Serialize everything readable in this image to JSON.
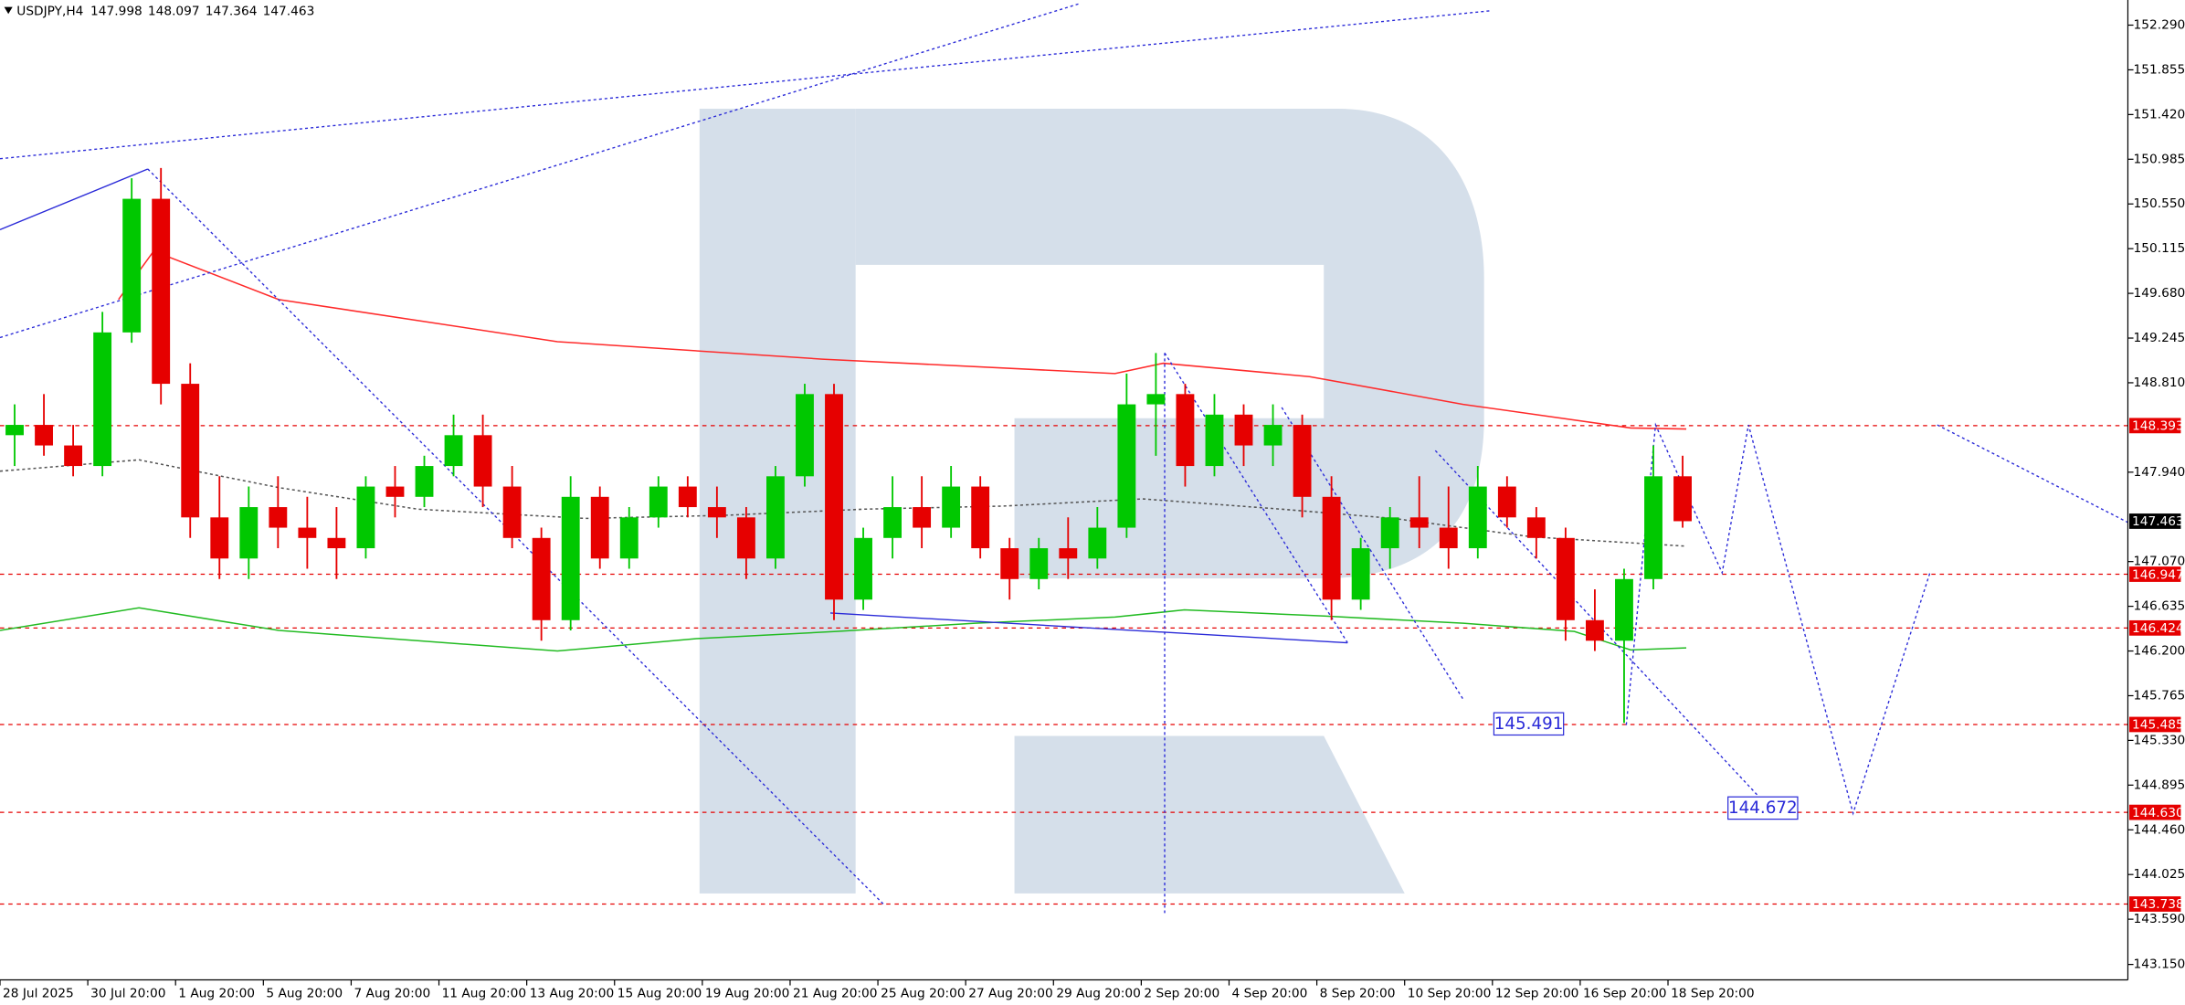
{
  "chart_data": {
    "type": "candlestick",
    "title": "USDJPY,H4",
    "header": {
      "open": 147.998,
      "high": 148.097,
      "low": 147.364,
      "close": 147.463
    },
    "x": [
      2,
      6,
      10,
      14,
      18,
      22,
      26,
      30,
      34,
      38,
      42,
      46,
      50,
      54,
      58,
      62,
      66,
      70,
      74,
      78,
      82,
      86,
      90,
      94,
      98,
      102,
      106,
      110,
      114,
      118,
      122,
      126,
      130,
      134,
      138,
      142,
      146,
      150,
      154,
      158,
      162,
      166,
      170,
      174,
      178,
      182,
      186,
      190,
      194,
      198,
      202,
      206,
      210,
      214,
      218,
      222,
      226,
      230
    ],
    "open": [
      148.3,
      148.4,
      148.2,
      148.0,
      149.3,
      150.6,
      148.8,
      147.5,
      147.1,
      147.6,
      147.4,
      147.3,
      147.2,
      147.8,
      147.7,
      148.0,
      148.3,
      147.8,
      147.3,
      146.5,
      147.7,
      147.1,
      147.5,
      147.8,
      147.6,
      147.5,
      147.1,
      147.9,
      148.7,
      146.7,
      147.3,
      147.6,
      147.4,
      147.8,
      147.2,
      146.9,
      147.2,
      147.1,
      147.4,
      148.6,
      148.7,
      148.0,
      148.5,
      148.2,
      148.4,
      147.7,
      146.7,
      147.2,
      147.5,
      147.4,
      147.2,
      147.8,
      147.5,
      147.3,
      146.5,
      146.3,
      146.9,
      147.9
    ],
    "high": [
      148.6,
      148.7,
      148.4,
      149.5,
      150.8,
      150.9,
      149.0,
      147.9,
      147.8,
      147.9,
      147.7,
      147.6,
      147.9,
      148.0,
      148.1,
      148.5,
      148.5,
      148.0,
      147.4,
      147.9,
      147.8,
      147.6,
      147.9,
      147.9,
      147.8,
      147.6,
      148.0,
      148.8,
      148.8,
      147.4,
      147.9,
      147.9,
      148.0,
      147.9,
      147.3,
      147.3,
      147.5,
      147.6,
      148.9,
      149.1,
      148.8,
      148.7,
      148.6,
      148.6,
      148.5,
      147.9,
      147.3,
      147.6,
      147.9,
      147.8,
      148.0,
      147.9,
      147.6,
      147.4,
      146.8,
      147.0,
      148.2,
      148.1
    ],
    "low": [
      148.0,
      148.1,
      147.9,
      147.9,
      149.2,
      148.6,
      147.3,
      146.9,
      146.9,
      147.2,
      147.0,
      146.9,
      147.1,
      147.5,
      147.6,
      147.9,
      147.6,
      147.2,
      146.3,
      146.4,
      147.0,
      147.0,
      147.4,
      147.5,
      147.3,
      146.9,
      147.0,
      147.8,
      146.5,
      146.6,
      147.1,
      147.2,
      147.3,
      147.1,
      146.7,
      146.8,
      146.9,
      147.0,
      147.3,
      148.1,
      147.8,
      147.9,
      148.0,
      148.0,
      147.5,
      146.5,
      146.6,
      147.0,
      147.2,
      147.0,
      147.1,
      147.4,
      147.1,
      146.3,
      146.2,
      145.5,
      146.8,
      147.4
    ],
    "close": [
      148.4,
      148.2,
      148.0,
      149.3,
      150.6,
      148.8,
      147.5,
      147.1,
      147.6,
      147.4,
      147.3,
      147.2,
      147.8,
      147.7,
      148.0,
      148.3,
      147.8,
      147.3,
      146.5,
      147.7,
      147.1,
      147.5,
      147.8,
      147.6,
      147.5,
      147.1,
      147.9,
      148.7,
      146.7,
      147.3,
      147.6,
      147.4,
      147.8,
      147.2,
      146.9,
      147.2,
      147.1,
      147.4,
      148.6,
      148.7,
      148.0,
      148.5,
      148.2,
      148.4,
      147.7,
      146.7,
      147.2,
      147.5,
      147.4,
      147.2,
      147.8,
      147.5,
      147.3,
      146.5,
      146.3,
      146.9,
      147.9,
      147.463
    ],
    "up_color": "#00c800",
    "down_color": "#e60000",
    "xlim": [
      0,
      290.86
    ],
    "xticks": [
      {
        "value": 0,
        "label": "28 Jul 2025"
      },
      {
        "value": 12,
        "label": "30 Jul 20:00"
      },
      {
        "value": 24,
        "label": "1 Aug 20:00"
      },
      {
        "value": 36,
        "label": "5 Aug 20:00"
      },
      {
        "value": 48,
        "label": "7 Aug 20:00"
      },
      {
        "value": 60,
        "label": "11 Aug 20:00"
      },
      {
        "value": 72,
        "label": "13 Aug 20:00"
      },
      {
        "value": 84,
        "label": "15 Aug 20:00"
      },
      {
        "value": 96,
        "label": "19 Aug 20:00"
      },
      {
        "value": 108,
        "label": "21 Aug 20:00"
      },
      {
        "value": 120,
        "label": "25 Aug 20:00"
      },
      {
        "value": 132,
        "label": "27 Aug 20:00"
      },
      {
        "value": 144,
        "label": "29 Aug 20:00"
      },
      {
        "value": 156,
        "label": "2 Sep 20:00"
      },
      {
        "value": 168,
        "label": "4 Sep 20:00"
      },
      {
        "value": 180,
        "label": "8 Sep 20:00"
      },
      {
        "value": 192,
        "label": "10 Sep 20:00"
      },
      {
        "value": 204,
        "label": "12 Sep 20:00"
      },
      {
        "value": 216,
        "label": "16 Sep 20:00"
      },
      {
        "value": 228,
        "label": "18 Sep 20:00"
      }
    ],
    "ylim": [
      143.0,
      152.534
    ],
    "yticks": [
      {
        "value": 152.29,
        "label": "152.290"
      },
      151.855,
      {
        "value": 151.42,
        "label": "151.420"
      },
      150.985,
      {
        "value": 150.55,
        "label": "150.550"
      },
      150.115,
      {
        "value": 149.68,
        "label": "149.680"
      },
      149.245,
      {
        "value": 148.81,
        "label": "148.810"
      },
      {
        "value": 147.94,
        "label": "147.940"
      },
      {
        "value": 147.07,
        "label": "147.070"
      },
      146.635,
      {
        "value": 146.2,
        "label": "146.200"
      },
      145.765,
      {
        "value": 145.33,
        "label": "145.330"
      },
      144.895,
      {
        "value": 144.46,
        "label": "144.460"
      },
      144.025,
      {
        "value": 143.59,
        "label": "143.590"
      },
      {
        "value": 143.15,
        "label": "143.150"
      }
    ],
    "grid": false,
    "levels": {
      "color": "#e60000",
      "values": [
        148.393,
        146.947,
        146.424,
        145.485,
        {
          "value": 144.63,
          "label": "144.630"
        },
        143.738
      ]
    },
    "current_color": "#000000",
    "indicators": [
      {
        "color": "#ff2a2a",
        "style": "solid",
        "x": [
          16.2,
          21,
          38.1,
          76.2,
          112.4,
          152.4,
          159,
          179,
          200,
          222.9,
          230.5
        ],
        "values": [
          149.62,
          150.09,
          149.62,
          149.21,
          149.04,
          148.9,
          149.0,
          148.87,
          148.6,
          148.37,
          148.36
        ]
      },
      {
        "color": "#22bb22",
        "style": "solid",
        "x": [
          0,
          19,
          38.1,
          57.1,
          76.2,
          95.2,
          114.3,
          133.3,
          152.4,
          161.9,
          181,
          200,
          215.2,
          222.9,
          230.5
        ],
        "values": [
          146.4,
          146.62,
          146.4,
          146.3,
          146.2,
          146.32,
          146.39,
          146.47,
          146.53,
          146.6,
          146.54,
          146.47,
          146.39,
          146.21,
          146.23
        ]
      },
      {
        "color": "#555555",
        "style": "dotted",
        "x": [
          0,
          19,
          38.1,
          57.1,
          80,
          99,
          118.1,
          137.1,
          156.2,
          175.2,
          190.5,
          209.5,
          230.5
        ],
        "values": [
          147.95,
          148.06,
          147.79,
          147.58,
          147.49,
          147.52,
          147.58,
          147.61,
          147.68,
          147.58,
          147.49,
          147.31,
          147.22
        ]
      }
    ],
    "drawings": [
      {
        "color": "#2a2ad8",
        "style": "dotted",
        "x": [
          0,
          203.8
        ],
        "values": [
          150.99,
          152.43
        ]
      },
      {
        "color": "#2a2ad8",
        "style": "dotted",
        "x": [
          0,
          147.6
        ],
        "values": [
          149.25,
          152.5
        ]
      },
      {
        "color": "#2a2ad8",
        "style": "solid",
        "x": [
          0,
          20.2
        ],
        "values": [
          150.3,
          150.89
        ]
      },
      {
        "color": "#2a2ad8",
        "style": "dotted",
        "x": [
          20.2,
          121
        ],
        "values": [
          150.89,
          143.72
        ]
      },
      {
        "color": "#2a2ad8",
        "style": "solid",
        "x": [
          113.5,
          184.2
        ],
        "values": [
          146.57,
          146.28
        ]
      },
      {
        "color": "#2a2ad8",
        "style": "dotted",
        "x": [
          159.2,
          159.2
        ],
        "values": [
          149.1,
          143.65
        ]
      },
      {
        "color": "#2a2ad8",
        "style": "dotted",
        "x": [
          159.2,
          184.2
        ],
        "values": [
          149.1,
          146.28
        ]
      },
      {
        "color": "#2a2ad8",
        "style": "dotted",
        "x": [
          175.2,
          200
        ],
        "values": [
          148.57,
          145.73
        ]
      },
      {
        "color": "#2a2ad8",
        "style": "dotted",
        "x": [
          196.2,
          241.9
        ],
        "values": [
          148.15,
          144.67
        ]
      },
      {
        "color": "#2a2ad8",
        "style": "dotted",
        "x": [
          222.3,
          226.3,
          235.4,
          239,
          253.3,
          263.8
        ],
        "values": [
          145.48,
          148.4,
          146.96,
          148.4,
          144.62,
          146.96
        ]
      },
      {
        "color": "#2a2ad8",
        "style": "dotted",
        "x": [
          264.8,
          290.9
        ],
        "values": [
          148.4,
          147.45
        ]
      }
    ],
    "annotations": [
      {
        "x": 204.2,
        "value": 145.491
      },
      {
        "x": 236.2,
        "value": 144.672
      }
    ]
  }
}
